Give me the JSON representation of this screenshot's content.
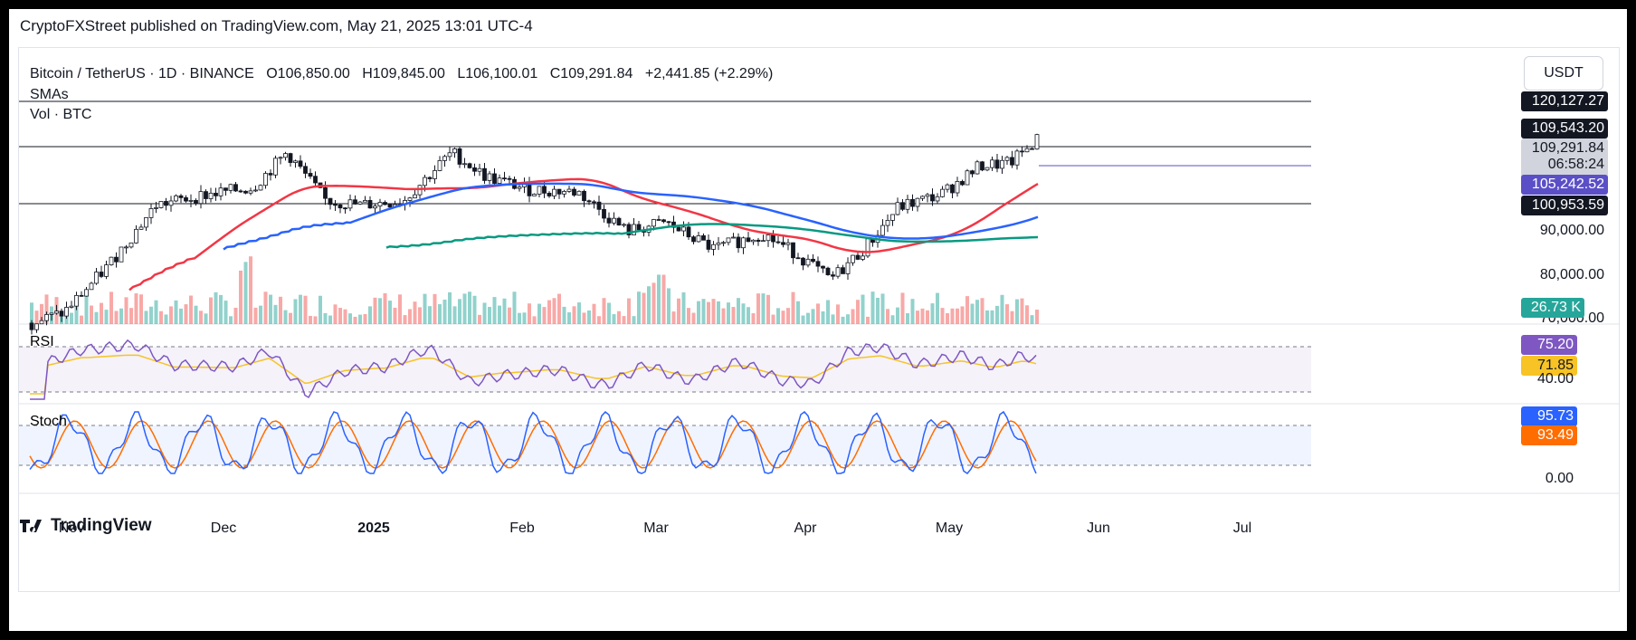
{
  "header": {
    "publisher": "CryptoFXStreet published on TradingView.com, May 21, 2025 13:01 UTC-4"
  },
  "legend": {
    "symbol": "Bitcoin / TetherUS · 1D · BINANCE",
    "open": "O106,850.00",
    "high": "H109,845.00",
    "low": "L106,100.01",
    "close": "C109,291.84",
    "change": "+2,441.85 (+2.29%)",
    "sma": "SMAs",
    "vol": "Vol · BTC"
  },
  "currency": "USDT",
  "price_labels": {
    "l1": "120,127.27",
    "l2": "109,543.20",
    "l3": "109,291.84",
    "l3_timer": "06:58:24",
    "l4": "105,242.52",
    "l5": "100,953.59",
    "vol": "26.73 K",
    "rsi": "75.20",
    "rsi_ma": "71.85",
    "stoch_k": "95.73",
    "stoch_d": "93.49"
  },
  "axis": {
    "price_ticks": [
      "90,000.00",
      "80,000.00",
      "70,000.00"
    ],
    "rsi_tick": "40.00",
    "stoch_tick": "0.00",
    "months": [
      "Nov",
      "Dec",
      "2025",
      "Feb",
      "Mar",
      "Apr",
      "May",
      "Jun",
      "Jul"
    ]
  },
  "panes": {
    "rsi": "RSI",
    "stoch": "Stoch"
  },
  "brand": "TradingView",
  "colors": {
    "up": "#26a69a",
    "down": "#ef5350",
    "sma_fast": "#f23645",
    "sma_mid": "#2962ff",
    "sma_slow": "#089981",
    "rsi": "#7e57c2",
    "rsi_ma": "#f7c325",
    "stoch_k": "#2962ff",
    "stoch_d": "#ff6d00"
  },
  "chart_data": {
    "type": "line",
    "title": "Bitcoin / TetherUS · 1D · BINANCE",
    "x": [
      "2024-10-25",
      "2024-11-01",
      "2024-11-10",
      "2024-11-20",
      "2024-12-01",
      "2024-12-10",
      "2024-12-17",
      "2024-12-25",
      "2025-01-01",
      "2025-01-10",
      "2025-01-20",
      "2025-01-27",
      "2025-02-05",
      "2025-02-15",
      "2025-02-25",
      "2025-03-05",
      "2025-03-15",
      "2025-03-25",
      "2025-04-01",
      "2025-04-08",
      "2025-04-15",
      "2025-04-22",
      "2025-05-01",
      "2025-05-09",
      "2025-05-15",
      "2025-05-21"
    ],
    "series": [
      {
        "name": "close",
        "values": [
          67000,
          69500,
          80000,
          94000,
          96500,
          98000,
          106000,
          95000,
          94000,
          95000,
          106000,
          100500,
          97500,
          97000,
          88000,
          90000,
          84000,
          87500,
          83000,
          77000,
          84000,
          93500,
          96500,
          103000,
          103500,
          109291.84
        ]
      }
    ],
    "ylim": [
      70000,
      120000
    ],
    "ohlc_last": {
      "open": 106850.0,
      "high": 109845.0,
      "low": 106100.01,
      "close": 109291.84
    },
    "volume_last": "26.73 K",
    "rsi_last": 75.2,
    "rsi_ma_last": 71.85,
    "stoch_k_last": 95.73,
    "stoch_d_last": 93.49,
    "horizontal_levels": [
      120127.27,
      109543.2,
      105242.52,
      100953.59
    ]
  }
}
